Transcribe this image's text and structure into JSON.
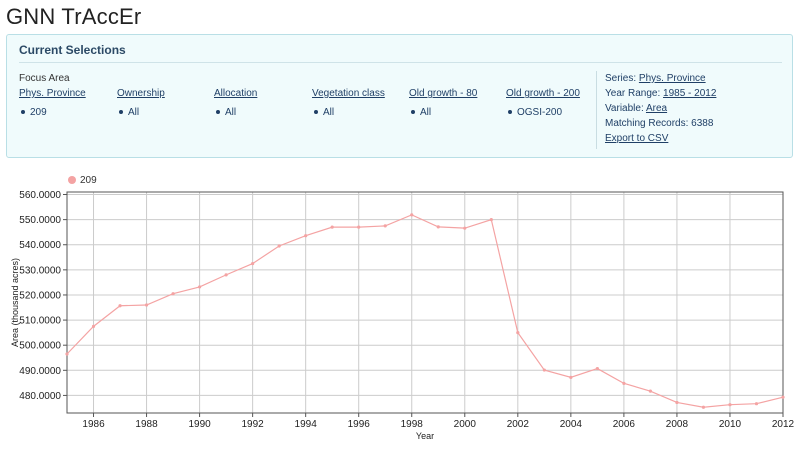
{
  "app": {
    "title": "GNN TrAccEr"
  },
  "selections": {
    "title": "Current Selections",
    "focus_label": "Focus Area",
    "filters": [
      {
        "label": "Phys. Province",
        "value": "209"
      },
      {
        "label": "Ownership",
        "value": "All"
      },
      {
        "label": "Allocation",
        "value": "All"
      },
      {
        "label": "Vegetation class",
        "value": "All"
      },
      {
        "label": "Old growth - 80",
        "value": "All"
      },
      {
        "label": "Old growth - 200",
        "value": "OGSI-200"
      }
    ],
    "info": {
      "series_label": "Series:",
      "series_value": "Phys. Province",
      "year_label": "Year Range:",
      "year_value": "1985 - 2012",
      "variable_label": "Variable:",
      "variable_value": "Area",
      "records_label": "Matching Records:",
      "records_value": "6388",
      "export_label": "Export to CSV"
    }
  },
  "colors": {
    "series": "#f4a3a3",
    "accent": "#1f3f66",
    "panel_bg": "#f0fbfc"
  },
  "chart_data": {
    "type": "line",
    "xlabel": "Year",
    "ylabel": "Area (thousand acres)",
    "legend": [
      "209"
    ],
    "legend_position": "top-left",
    "grid": true,
    "xlim": [
      1985,
      2012
    ],
    "ylim": [
      473000,
      561000
    ],
    "x_ticks": [
      "1986",
      "1988",
      "1990",
      "1992",
      "1994",
      "1996",
      "1998",
      "2000",
      "2002",
      "2004",
      "2006",
      "2008",
      "2010",
      "2012"
    ],
    "y_ticks": [
      "480.0000",
      "490.0000",
      "500.0000",
      "510.0000",
      "520.0000",
      "530.0000",
      "540.0000",
      "550.0000",
      "560.0000"
    ],
    "series": [
      {
        "name": "209",
        "x": [
          1985,
          1986,
          1987,
          1988,
          1989,
          1990,
          1991,
          1992,
          1993,
          1994,
          1995,
          1996,
          1997,
          1998,
          1999,
          2000,
          2001,
          2002,
          2003,
          2004,
          2005,
          2006,
          2007,
          2008,
          2009,
          2010,
          2011,
          2012
        ],
        "values": [
          496500,
          507500,
          515700,
          516000,
          520500,
          523200,
          528000,
          532500,
          539500,
          543600,
          547000,
          547000,
          547500,
          551900,
          547100,
          546600,
          550000,
          505000,
          490100,
          487200,
          490700,
          484800,
          481700,
          477200,
          475300,
          476300,
          476700,
          479300
        ]
      }
    ]
  }
}
